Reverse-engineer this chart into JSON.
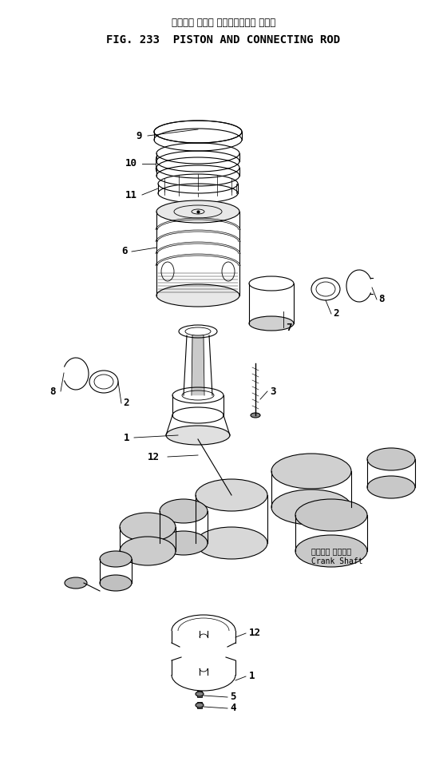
{
  "title_japanese": "ピストン および コネクティング ロッド",
  "title_english": "FIG. 233  PISTON AND CONNECTING ROD",
  "bg_color": "#ffffff",
  "line_color": "#000000",
  "label_color": "#000000",
  "crank_shaft_label_jp": "クランク シャフト",
  "crank_shaft_label_en": "Crank Shaft",
  "fig_width": 5.6,
  "fig_height": 9.73
}
